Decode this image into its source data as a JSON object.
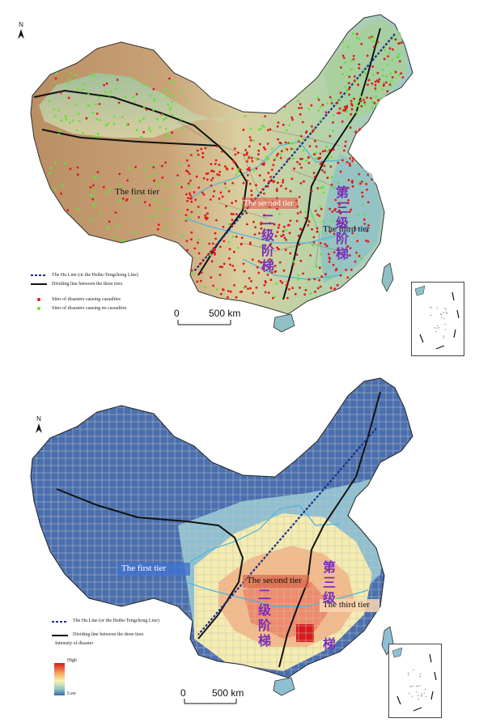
{
  "panels": [
    {
      "id": "top",
      "tier_labels": {
        "first": "The first tier",
        "second": "The second tier",
        "third": "The third tier"
      },
      "cn_second": [
        "二",
        "级",
        "阶",
        "梯"
      ],
      "cn_third": [
        "第",
        "三",
        "级",
        "阶",
        "梯"
      ],
      "legend": [
        "The Hu Line (or the Heihe-Tengchong Line)",
        "Dividing line between the three tiers",
        "Sites of disasters causing casualties",
        "Sites of disasters causing no casualties"
      ],
      "scale": {
        "zero": "0",
        "value": "500 km"
      },
      "north": "N"
    },
    {
      "id": "bottom",
      "tier_labels": {
        "first": "The first tier",
        "second": "The second tier",
        "third": "The third tier"
      },
      "cn_second": [
        "二",
        "级",
        "阶",
        "梯"
      ],
      "cn_third": [
        "第",
        "三",
        "级",
        "梯"
      ],
      "legend": [
        "The Hu Line (or the Heihe-Tengchong Line)",
        "Dividing line between the three tiers",
        "Intensity of disaster"
      ],
      "ramp": {
        "high": "High",
        "low": "Low"
      },
      "scale": {
        "zero": "0",
        "value": "500 km"
      },
      "north": "N"
    }
  ],
  "colors": {
    "hu_line": "#1a2f8a",
    "tier_line": "#111111",
    "casualty_dot": "#e0191b",
    "no_casualty_dot": "#66e03a",
    "river": "#4fb3e0",
    "intensity_high": "#d7191c",
    "intensity_low": "#3a64b0"
  },
  "icons": [
    "north-arrow-icon",
    "scale-bar-icon"
  ]
}
